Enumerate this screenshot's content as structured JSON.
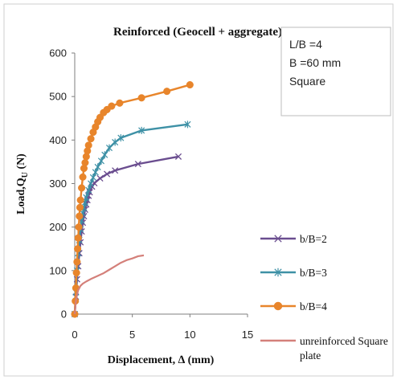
{
  "chart_data": {
    "type": "line",
    "title": "Reinforced (Geocell + aggregate)",
    "xlabel": "Displacement, ∆ (mm)",
    "ylabel_main": "Load,Q",
    "ylabel_sub": "U",
    "ylabel_tail": " (N)",
    "xlim": [
      0,
      15
    ],
    "ylim": [
      0,
      600
    ],
    "xticks": [
      "0",
      "5",
      "10",
      "15"
    ],
    "yticks": [
      "0",
      "100",
      "200",
      "300",
      "400",
      "500",
      "600"
    ],
    "grid": false,
    "legend_position": "right",
    "note_lines": [
      "L/B =4",
      "B =60 mm",
      "Square"
    ],
    "series": [
      {
        "name": "b/B=2",
        "color": "#6A4D8F",
        "marker": "x",
        "x": [
          0,
          0.1,
          0.2,
          0.3,
          0.4,
          0.5,
          0.6,
          0.7,
          0.8,
          0.9,
          1.0,
          1.1,
          1.2,
          1.3,
          1.5,
          1.7,
          2.2,
          2.8,
          3.5,
          5.5,
          9.0
        ],
        "y": [
          0,
          40,
          80,
          110,
          140,
          165,
          190,
          210,
          225,
          240,
          252,
          262,
          272,
          280,
          293,
          301,
          312,
          322,
          330,
          345,
          362
        ]
      },
      {
        "name": "b/B=3",
        "color": "#3E91A6",
        "marker": "star",
        "x": [
          0,
          0.1,
          0.2,
          0.3,
          0.4,
          0.5,
          0.6,
          0.7,
          0.8,
          0.9,
          1.0,
          1.2,
          1.4,
          1.6,
          1.8,
          2.0,
          2.3,
          2.6,
          3.0,
          3.5,
          4.0,
          5.8,
          9.8
        ],
        "y": [
          0,
          50,
          100,
          140,
          170,
          195,
          215,
          232,
          245,
          257,
          268,
          285,
          300,
          314,
          326,
          338,
          352,
          366,
          382,
          395,
          405,
          422,
          436
        ]
      },
      {
        "name": "b/B=4",
        "color": "#E8852B",
        "marker": "circle",
        "x": [
          0,
          0.05,
          0.1,
          0.15,
          0.2,
          0.25,
          0.3,
          0.35,
          0.4,
          0.45,
          0.5,
          0.6,
          0.7,
          0.8,
          0.9,
          1.0,
          1.1,
          1.2,
          1.4,
          1.6,
          1.8,
          2.0,
          2.2,
          2.5,
          2.8,
          3.2,
          3.9,
          5.8,
          8.0,
          10.0
        ],
        "y": [
          0,
          30,
          60,
          95,
          120,
          150,
          175,
          200,
          225,
          245,
          262,
          290,
          315,
          335,
          348,
          362,
          375,
          388,
          403,
          418,
          430,
          442,
          452,
          463,
          470,
          478,
          485,
          497,
          512,
          527
        ]
      },
      {
        "name": "unreinforced Square plate",
        "name_lines": [
          "unreinforced Square",
          "plate"
        ],
        "color": "#D4807A",
        "marker": "none",
        "x": [
          0,
          0.05,
          0.1,
          0.2,
          0.3,
          0.5,
          0.7,
          1.0,
          1.5,
          2.0,
          2.5,
          3.0,
          3.5,
          4.0,
          4.5,
          5.0,
          5.5,
          6.0
        ],
        "y": [
          0,
          15,
          30,
          45,
          55,
          65,
          70,
          75,
          82,
          88,
          94,
          102,
          110,
          118,
          124,
          128,
          133,
          135
        ]
      }
    ]
  }
}
